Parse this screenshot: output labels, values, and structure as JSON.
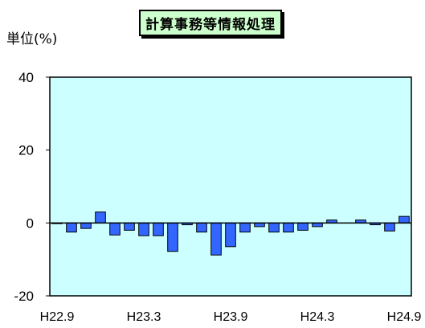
{
  "chart_data": {
    "type": "bar",
    "title": "計算事務等情報処理",
    "unit_label": "単位(%)",
    "ylim": [
      -20,
      40
    ],
    "yticks": [
      40,
      20,
      0,
      -20
    ],
    "xtick_labels": [
      "H22.9",
      "H23.3",
      "H23.9",
      "H24.3",
      "H24.9"
    ],
    "xtick_positions": [
      0,
      6,
      12,
      18,
      24
    ],
    "categories_count": 25,
    "values": [
      -0.2,
      -2.5,
      -1.5,
      3.0,
      -3.3,
      -2.0,
      -3.5,
      -3.5,
      -7.8,
      -0.5,
      -2.5,
      -8.8,
      -6.5,
      -2.5,
      -1.0,
      -2.5,
      -2.5,
      -2.0,
      -1.0,
      0.8,
      0.0,
      0.8,
      -0.5,
      -2.2,
      1.8
    ],
    "bar_color": "#3366ff",
    "plot_bg": "#ccffff",
    "title_bg": "#ccffcc",
    "grid": false
  }
}
